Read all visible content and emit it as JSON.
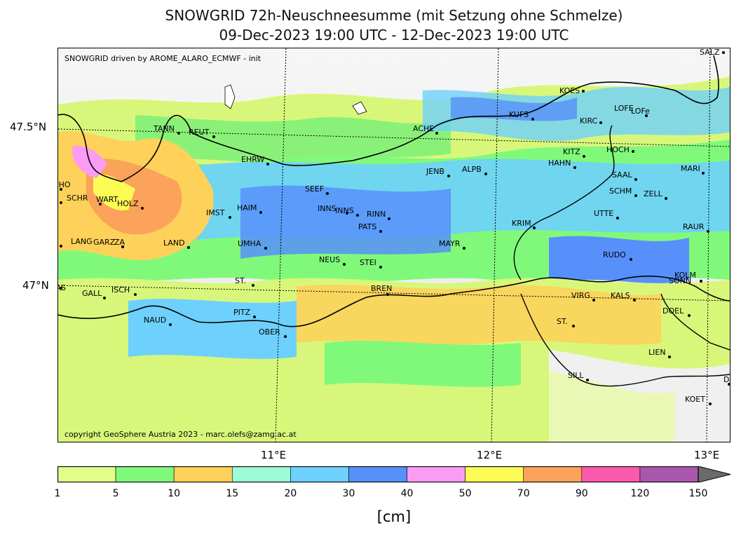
{
  "title_line1": "SNOWGRID 72h-Neuschneesumme (mit Setzung ohne Schmelze)",
  "title_line2": "09-Dec-2023 19:00 UTC - 12-Dec-2023 19:00 UTC",
  "map": {
    "top_note": "SNOWGRID driven by AROME_ALARO_ECMWF - init",
    "copyright": "copyright GeoSphere Austria 2023 - marc.olefs@zamg.ac.at",
    "lat_labels": [
      "47.5°N",
      "47°N"
    ],
    "lon_labels": [
      "11°E",
      "12°E",
      "13°E"
    ],
    "stations": [
      "SALZ",
      "KOES",
      "LOFE",
      "LOFe",
      "KUFS",
      "KIRC",
      "ACHE",
      "TANN",
      "REUT",
      "HOCH",
      "KITZ",
      "HAHN",
      "EHRW",
      "JENB",
      "ALPB",
      "MARI",
      "SAAL",
      "SCHO",
      "SEEF",
      "SCHM",
      "ZELL",
      "SCHR",
      "WART",
      "HOLZ",
      "INNS",
      "INNS",
      "RINN",
      "IMST",
      "HAIM",
      "UTTE",
      "PATS",
      "KRIM",
      "RAUR",
      "LANG",
      "GARZ",
      "ZA",
      "LAND",
      "UMHA",
      "MAYR",
      "NEUS",
      "STEI",
      "RUDO",
      "KOLM",
      "SONN",
      "GAS",
      "ST.",
      "BREN",
      "GALL",
      "ISCH",
      "VIRG",
      "KALS",
      "DOEL",
      "PITZ",
      "NAUD",
      "ST.",
      "OBER",
      "LIEN",
      "SILL",
      "DELL",
      "KOET"
    ]
  },
  "colorbar": {
    "unit": "[cm]",
    "bounds": [
      "1",
      "5",
      "10",
      "15",
      "20",
      "30",
      "40",
      "50",
      "70",
      "90",
      "120",
      "150"
    ],
    "colors": [
      "#e3fd8a",
      "#80f97a",
      "#fdd15a",
      "#9cfcd8",
      "#6ed0fc",
      "#5790fa",
      "#fb9cf4",
      "#fcfc54",
      "#fba35a",
      "#fc5aac",
      "#a957ac",
      "#6b6b6b"
    ],
    "extend": "max"
  }
}
